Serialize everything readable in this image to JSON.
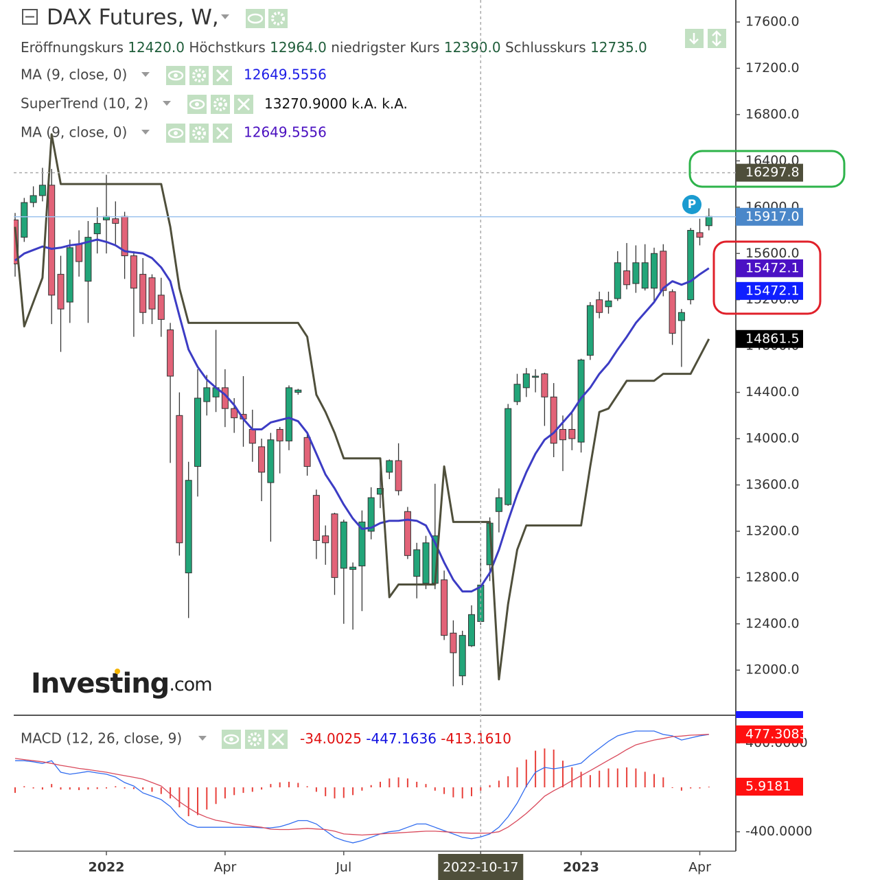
{
  "chart_data": [
    {
      "type": "candlestick",
      "title": "DAX Futures, W,",
      "ohlc_legend": [
        {
          "label": "Eröffnungskurs",
          "value": "12420.0"
        },
        {
          "label": "Höchstkurs",
          "value": "12964.0"
        },
        {
          "label": "niedrigster Kurs",
          "value": "12390.0"
        },
        {
          "label": "Schlusskurs",
          "value": "12735.0"
        }
      ],
      "indicators": [
        {
          "name": "MA (9, close, 0)",
          "legend_values": [
            "12649.5556"
          ],
          "legend_color": "#1c1ce6",
          "color": "#3c3cc4",
          "values": [
            15540,
            15600,
            15630,
            15660,
            15640,
            15650,
            15670,
            15680,
            15700,
            15720,
            15700,
            15670,
            15620,
            15610,
            15600,
            15560,
            15480,
            15360,
            15060,
            14770,
            14620,
            14510,
            14440,
            14380,
            14290,
            14170,
            14080,
            14080,
            14140,
            14160,
            14180,
            14150,
            14050,
            13870,
            13690,
            13570,
            13430,
            13310,
            13220,
            13230,
            13270,
            13290,
            13290,
            13300,
            13290,
            13250,
            13100,
            12930,
            12780,
            12680,
            12680,
            12720,
            12840,
            13040,
            13290,
            13520,
            13710,
            13870,
            13990,
            14050,
            14140,
            14230,
            14350,
            14440,
            14560,
            14650,
            14770,
            14880,
            15000,
            15090,
            15180,
            15300,
            15360,
            15330,
            15360,
            15420,
            15472.1
          ]
        },
        {
          "name": "SuperTrend (10, 2)",
          "legend_values": [
            "13270.9000",
            "k.A.",
            "k.A."
          ],
          "legend_color": "#111111",
          "color": "#4f4f3b",
          "values": [
            15830,
            14970,
            15180,
            15390,
            16630,
            16200,
            16200,
            16200,
            16200,
            16200,
            16200,
            16200,
            16200,
            16200,
            16200,
            16200,
            16200,
            15830,
            15300,
            15000,
            15000,
            15000,
            15000,
            15000,
            15000,
            15000,
            15000,
            15000,
            15000,
            15000,
            15000,
            15000,
            14880,
            14380,
            14230,
            14050,
            13830,
            13830,
            13830,
            13830,
            13830,
            12630,
            12740,
            12740,
            12740,
            12740,
            12740,
            13760,
            13280,
            13280,
            13280,
            13280,
            13280,
            11920,
            12570,
            13040,
            13250,
            13250,
            13250,
            13250,
            13250,
            13250,
            13250,
            13760,
            14230,
            14260,
            14380,
            14500,
            14500,
            14500,
            14500,
            14560,
            14560,
            14560,
            14560,
            14710,
            14861.5
          ]
        },
        {
          "name": "MA (9, close, 0)",
          "legend_values": [
            "12649.5556"
          ],
          "legend_color": "#4a10c0"
        }
      ],
      "candles": {
        "up_color": "#22a579",
        "down_color": "#e26378",
        "open": [
          15890,
          15740,
          16040,
          16100,
          16190,
          15420,
          15180,
          15680,
          15360,
          15770,
          15890,
          15900,
          15920,
          15580,
          15420,
          15390,
          15240,
          14940,
          14200,
          12840,
          13760,
          14320,
          14360,
          14440,
          14260,
          14210,
          14080,
          13930,
          13620,
          14080,
          13980,
          14400,
          14010,
          13510,
          13160,
          13350,
          12880,
          12870,
          12900,
          13200,
          13520,
          13710,
          13810,
          13370,
          12810,
          12750,
          12750,
          12780,
          12320,
          11950,
          12210,
          12420,
          12910,
          13370,
          13430,
          14320,
          14440,
          14530,
          14560,
          14360,
          14080,
          14080,
          13970,
          14720,
          15200,
          15140,
          15210,
          15450,
          15340,
          15300,
          15300,
          15620,
          15270,
          15020,
          15200,
          15780,
          15840
        ],
        "high": [
          15950,
          16080,
          16180,
          16340,
          16330,
          15580,
          15720,
          15800,
          15880,
          16000,
          16280,
          16050,
          15960,
          15620,
          15560,
          15420,
          15390,
          15000,
          14400,
          13800,
          14600,
          14550,
          14940,
          14600,
          14350,
          14540,
          14250,
          14000,
          14050,
          14100,
          14460,
          14430,
          14050,
          13560,
          13250,
          13360,
          13300,
          12930,
          13380,
          13580,
          13820,
          13820,
          13960,
          13410,
          13100,
          13160,
          13610,
          12860,
          12430,
          12340,
          12560,
          12964,
          13320,
          13570,
          14300,
          14560,
          14610,
          14600,
          14570,
          14480,
          14200,
          14230,
          14690,
          15180,
          15270,
          15270,
          15620,
          15690,
          15670,
          15680,
          15650,
          15680,
          15290,
          15120,
          15820,
          15900,
          15990
        ],
        "low": [
          15400,
          15700,
          16000,
          16050,
          14990,
          14750,
          15000,
          15400,
          15000,
          15600,
          15600,
          15680,
          15380,
          14880,
          14990,
          14990,
          14880,
          13790,
          12990,
          12450,
          13500,
          14200,
          14230,
          14100,
          14050,
          13930,
          13800,
          13460,
          13110,
          13700,
          13900,
          14380,
          13680,
          12960,
          12910,
          12650,
          12400,
          12350,
          12510,
          13130,
          13400,
          13650,
          13510,
          12960,
          12620,
          12700,
          12700,
          12260,
          11860,
          11870,
          12200,
          12390,
          12770,
          13190,
          13420,
          14290,
          14360,
          14400,
          14110,
          13840,
          13720,
          13900,
          13880,
          14680,
          15040,
          15080,
          15190,
          15290,
          15260,
          15280,
          15180,
          15230,
          14810,
          14620,
          15160,
          15670,
          15800
        ],
        "close": [
          15510,
          16040,
          16100,
          16190,
          15240,
          15120,
          15650,
          15530,
          15740,
          15860,
          15920,
          15860,
          15580,
          15300,
          15090,
          15120,
          15030,
          14540,
          13100,
          13640,
          14350,
          14440,
          14440,
          14260,
          14180,
          14170,
          13960,
          13710,
          13990,
          13980,
          14440,
          14420,
          13760,
          13120,
          13100,
          12800,
          13280,
          12890,
          13280,
          13490,
          13570,
          13810,
          13550,
          12990,
          13040,
          13100,
          13160,
          12300,
          12150,
          12300,
          12480,
          12735,
          13270,
          13490,
          14260,
          14470,
          14560,
          14540,
          14360,
          13960,
          13990,
          14000,
          14680,
          15150,
          15090,
          15190,
          15520,
          15330,
          15520,
          15520,
          15600,
          15280,
          14910,
          15090,
          15800,
          15740,
          15920
        ]
      },
      "ylim": [
        11610,
        17790
      ],
      "yticks": [
        {
          "value": 12000,
          "label": "12000.0"
        },
        {
          "value": 12400,
          "label": "12400.0"
        },
        {
          "value": 12800,
          "label": "12800.0"
        },
        {
          "value": 13200,
          "label": "13200.0"
        },
        {
          "value": 13600,
          "label": "13600.0"
        },
        {
          "value": 14000,
          "label": "14000.0"
        },
        {
          "value": 14400,
          "label": "14400.0"
        },
        {
          "value": 14800,
          "label": "14800.0"
        },
        {
          "value": 15200,
          "label": "15200.0"
        },
        {
          "value": 15600,
          "label": "15600.0"
        },
        {
          "value": 16000,
          "label": "16000.0"
        },
        {
          "value": 16400,
          "label": "16400.0"
        },
        {
          "value": 16800,
          "label": "16800.0"
        },
        {
          "value": 17200,
          "label": "17200.0"
        },
        {
          "value": 17600,
          "label": "17600.0"
        }
      ],
      "xticks": [
        {
          "value": 10,
          "label": "2022",
          "bold": true
        },
        {
          "value": 23,
          "label": "Apr"
        },
        {
          "value": 36,
          "label": "Jul"
        },
        {
          "value": 51,
          "label": "2022-10-17",
          "highlight": true
        },
        {
          "value": 62,
          "label": "2023",
          "bold": true
        },
        {
          "value": 75,
          "label": "Apr"
        }
      ],
      "axis_tags": [
        {
          "value": 16297.8,
          "color": "#4f4f3b",
          "crosshair": true
        },
        {
          "value": 15917,
          "label": "15917.0",
          "color": "#4a87c9",
          "price_line": "#9cc3ee"
        },
        {
          "value": 15472.1,
          "color": "#4b11c4"
        },
        {
          "value": 15472.1,
          "color": "#0f1fff"
        },
        {
          "value": 14861.5,
          "color": "#000000"
        }
      ],
      "badge": "P",
      "logo": "Investing",
      "logo_suffix": ".com"
    },
    {
      "type": "macd",
      "name": "MACD (12, 26, close, 9)",
      "legend_values": [
        {
          "text": "-34.0025",
          "color": "#e01010"
        },
        {
          "text": "-447.1636",
          "color": "#1010e0"
        },
        {
          "text": "-413.1610",
          "color": "#e01010"
        }
      ],
      "histogram": {
        "color": "#e8403a",
        "values": [
          -50,
          10,
          -10,
          -20,
          30,
          -20,
          -20,
          -25,
          -20,
          -15,
          -10,
          10,
          -10,
          -15,
          -20,
          -40,
          -60,
          -100,
          -180,
          -260,
          -250,
          -200,
          -150,
          -100,
          -70,
          -50,
          -40,
          -20,
          30,
          45,
          50,
          40,
          10,
          -40,
          -80,
          -100,
          -95,
          -70,
          -30,
          20,
          50,
          80,
          90,
          80,
          50,
          30,
          -30,
          -60,
          -90,
          -100,
          -80,
          -30,
          20,
          60,
          100,
          180,
          250,
          330,
          350,
          340,
          240,
          180,
          140,
          110,
          150,
          170,
          170,
          180,
          170,
          140,
          120,
          90,
          0,
          -30,
          -10,
          -10,
          5.9181
        ]
      },
      "series": [
        {
          "color": "#2f6bef",
          "values": [
            240,
            240,
            230,
            215,
            240,
            136,
            118,
            130,
            143,
            130,
            118,
            93,
            43,
            12,
            -50,
            -80,
            -110,
            -173,
            -265,
            -330,
            -360,
            -360,
            -360,
            -360,
            -360,
            -360,
            -360,
            -365,
            -365,
            -355,
            -330,
            -300,
            -300,
            -330,
            -390,
            -450,
            -480,
            -500,
            -480,
            -450,
            -420,
            -400,
            -390,
            -360,
            -330,
            -330,
            -360,
            -390,
            -420,
            -450,
            -463,
            -447,
            -420,
            -360,
            -265,
            -142,
            12,
            136,
            179,
            167,
            179,
            198,
            217,
            290,
            352,
            414,
            464,
            488,
            507,
            507,
            507,
            476,
            464,
            426,
            445,
            464,
            476
          ]
        },
        {
          "color": "#d9485a",
          "values": [
            260,
            250,
            240,
            230,
            215,
            198,
            185,
            170,
            160,
            148,
            136,
            120,
            105,
            90,
            74,
            43,
            12,
            -60,
            -130,
            -185,
            -235,
            -270,
            -297,
            -310,
            -330,
            -340,
            -350,
            -360,
            -377,
            -380,
            -380,
            -375,
            -370,
            -375,
            -380,
            -395,
            -420,
            -425,
            -430,
            -425,
            -420,
            -415,
            -410,
            -405,
            -400,
            -395,
            -395,
            -400,
            -405,
            -410,
            -413,
            -413,
            -412,
            -400,
            -358,
            -300,
            -235,
            -160,
            -80,
            -30,
            12,
            60,
            105,
            150,
            198,
            245,
            290,
            340,
            383,
            405,
            426,
            440,
            457,
            462,
            470,
            473,
            477.3083
          ]
        }
      ],
      "ylim": [
        -575,
        643
      ],
      "yticks": [
        {
          "value": 400,
          "label": "400.0000"
        },
        {
          "value": -400,
          "label": "-400.0000"
        }
      ],
      "axis_tags": [
        {
          "value": 477.3083,
          "color": "#ff1010"
        },
        {
          "value": 5.9181,
          "color": "#ff1010"
        }
      ]
    }
  ]
}
